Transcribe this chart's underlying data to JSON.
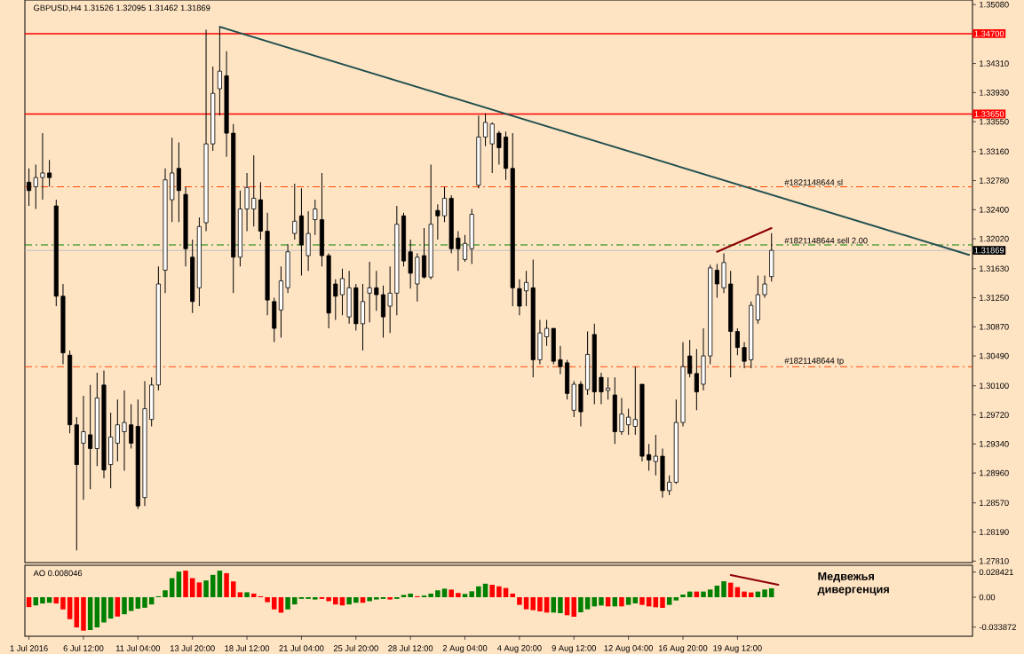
{
  "chart_data": [
    {
      "type": "candlestick",
      "title": "GBPUSD,H4  1.31526 1.32095 1.31462 1.31869",
      "categories": [
        null,
        null,
        null,
        null,
        null,
        null,
        null,
        null,
        null,
        null,
        null,
        null,
        null,
        null,
        null,
        null,
        null,
        null,
        null,
        null,
        null,
        null,
        null,
        null,
        null,
        null,
        null,
        null,
        null,
        null,
        null,
        null,
        null,
        null,
        null,
        null,
        null,
        null,
        null,
        null,
        null,
        null,
        null,
        null,
        null,
        null,
        null,
        null,
        null,
        null,
        null,
        null,
        null,
        null,
        null,
        null,
        null,
        null,
        null,
        null,
        null,
        null,
        null,
        null,
        null,
        null,
        null,
        null,
        null,
        null,
        null,
        null,
        null,
        null,
        null,
        null,
        null,
        null,
        null,
        null,
        null,
        null,
        null,
        null,
        null,
        null,
        null,
        null,
        null,
        null,
        null,
        null,
        null,
        null,
        null,
        null,
        null,
        null,
        null,
        null,
        null,
        null,
        null,
        null,
        null,
        null,
        null,
        null,
        null,
        null,
        null,
        null,
        null,
        null,
        null,
        null,
        null,
        null,
        null,
        null,
        null,
        null,
        null,
        null,
        null,
        null,
        null,
        null,
        null,
        null,
        null,
        null,
        null,
        null,
        null,
        null,
        null,
        null,
        null
      ],
      "tick_labels": "y",
      "ohlc": [
        [
          1.3276,
          1.3294,
          1.3245,
          1.3265
        ],
        [
          1.327,
          1.3299,
          1.3241,
          1.3282
        ],
        [
          1.3282,
          1.334,
          1.3253,
          1.3288
        ],
        [
          1.3288,
          1.3305,
          1.327,
          1.3282
        ],
        [
          1.3245,
          1.3253,
          1.3114,
          1.3127
        ],
        [
          1.3127,
          1.3143,
          1.3038,
          1.3053
        ],
        [
          1.305,
          1.3056,
          1.2948,
          1.2959
        ],
        [
          1.2959,
          1.2969,
          1.2795,
          1.2907
        ],
        [
          1.2935,
          1.2997,
          1.2861,
          1.295
        ],
        [
          1.2946,
          1.3011,
          1.2875,
          1.2928
        ],
        [
          1.2928,
          1.3027,
          1.2905,
          1.2994
        ],
        [
          1.3011,
          1.303,
          1.2889,
          1.29
        ],
        [
          1.2907,
          1.2975,
          1.2876,
          1.2943
        ],
        [
          1.2935,
          1.2992,
          1.2911,
          1.2959
        ],
        [
          1.295,
          1.3004,
          1.2899,
          1.2962
        ],
        [
          1.2959,
          1.2986,
          1.2928,
          1.2935
        ],
        [
          1.2957,
          1.2992,
          1.2849,
          1.2853
        ],
        [
          1.2864,
          1.3016,
          1.2853,
          1.298
        ],
        [
          1.2966,
          1.3021,
          1.2957,
          1.3011
        ],
        [
          1.3011,
          1.3166,
          1.3004,
          1.3143
        ],
        [
          1.3161,
          1.3294,
          1.3131,
          1.3279
        ],
        [
          1.3253,
          1.3334,
          1.3224,
          1.3288
        ],
        [
          1.3294,
          1.3328,
          1.3224,
          1.3265
        ],
        [
          1.326,
          1.327,
          1.3166,
          1.3189
        ],
        [
          1.3178,
          1.3201,
          1.3105,
          1.312
        ],
        [
          1.3138,
          1.323,
          1.3114,
          1.3218
        ],
        [
          1.3223,
          1.3475,
          1.3212,
          1.3326
        ],
        [
          1.3326,
          1.3427,
          1.3317,
          1.3392
        ],
        [
          1.3398,
          1.3479,
          1.3363,
          1.3421
        ],
        [
          1.3415,
          1.3447,
          1.3309,
          1.334
        ],
        [
          1.334,
          1.3352,
          1.3131,
          1.3178
        ],
        [
          1.3178,
          1.3265,
          1.3166,
          1.3241
        ],
        [
          1.3241,
          1.3288,
          1.3212,
          1.3269
        ],
        [
          1.3241,
          1.3311,
          1.3218,
          1.3255
        ],
        [
          1.3253,
          1.3276,
          1.3201,
          1.3212
        ],
        [
          1.3212,
          1.3236,
          1.3102,
          1.3122
        ],
        [
          1.312,
          1.3125,
          1.3067,
          1.3085
        ],
        [
          1.3109,
          1.3166,
          1.3073,
          1.3147
        ],
        [
          1.3138,
          1.3195,
          1.3131,
          1.3185
        ],
        [
          1.3209,
          1.3274,
          1.3201,
          1.3225
        ],
        [
          1.3232,
          1.3268,
          1.3154,
          1.3194
        ],
        [
          1.318,
          1.3238,
          1.316,
          1.3209
        ],
        [
          1.3227,
          1.3253,
          1.3207,
          1.3241
        ],
        [
          1.3227,
          1.3288,
          1.3166,
          1.318
        ],
        [
          1.318,
          1.3183,
          1.3085,
          1.3105
        ],
        [
          1.3143,
          1.3149,
          1.3096,
          1.3127
        ],
        [
          1.3129,
          1.3163,
          1.3102,
          1.315
        ],
        [
          1.31,
          1.316,
          1.3091,
          1.3138
        ],
        [
          1.3138,
          1.3143,
          1.3082,
          1.3091
        ],
        [
          1.3091,
          1.3143,
          1.3056,
          1.312
        ],
        [
          1.3131,
          1.3172,
          1.3093,
          1.3138
        ],
        [
          1.3138,
          1.316,
          1.3108,
          1.3129
        ],
        [
          1.3129,
          1.3141,
          1.3073,
          1.31
        ],
        [
          1.3114,
          1.3166,
          1.3079,
          1.3131
        ],
        [
          1.3131,
          1.3245,
          1.3102,
          1.3221
        ],
        [
          1.3232,
          1.3236,
          1.3166,
          1.3173
        ],
        [
          1.3185,
          1.3201,
          1.3137,
          1.3157
        ],
        [
          1.3143,
          1.3183,
          1.312,
          1.3178
        ],
        [
          1.318,
          1.3216,
          1.315,
          1.3152
        ],
        [
          1.3152,
          1.3299,
          1.3149,
          1.3221
        ],
        [
          1.3239,
          1.3247,
          1.3201,
          1.3232
        ],
        [
          1.3232,
          1.327,
          1.3224,
          1.3255
        ],
        [
          1.3255,
          1.3259,
          1.3183,
          1.3189
        ],
        [
          1.3203,
          1.3212,
          1.316,
          1.3189
        ],
        [
          1.3175,
          1.3207,
          1.3172,
          1.3196
        ],
        [
          1.3189,
          1.3241,
          1.3169,
          1.3234
        ],
        [
          1.3272,
          1.3363,
          1.3268,
          1.3335
        ],
        [
          1.3335,
          1.3366,
          1.3323,
          1.3354
        ],
        [
          1.3326,
          1.3354,
          1.3288,
          1.3352
        ],
        [
          1.334,
          1.3343,
          1.3299,
          1.3321
        ],
        [
          1.3335,
          1.3342,
          1.3279,
          1.3294
        ],
        [
          1.3294,
          1.334,
          1.3114,
          1.3138
        ],
        [
          1.3137,
          1.3149,
          1.3102,
          1.3114
        ],
        [
          1.3134,
          1.316,
          1.3114,
          1.3145
        ],
        [
          1.3138,
          1.3175,
          1.3021,
          1.3044
        ],
        [
          1.3044,
          1.3096,
          1.3038,
          1.3079
        ],
        [
          1.3074,
          1.3096,
          1.3062,
          1.3085
        ],
        [
          1.3085,
          1.3085,
          1.3038,
          1.3042
        ],
        [
          1.3044,
          1.3062,
          1.3025,
          1.3035
        ],
        [
          1.304,
          1.3044,
          1.2992,
          1.3
        ],
        [
          1.2978,
          1.3016,
          1.2969,
          1.3012
        ],
        [
          1.3012,
          1.3016,
          1.2957,
          1.2976
        ],
        [
          1.3005,
          1.3081,
          1.2998,
          1.3051
        ],
        [
          1.3077,
          1.3091,
          1.2986,
          1.3002
        ],
        [
          1.3021,
          1.3027,
          1.2986,
          1.3002
        ],
        [
          1.3004,
          1.3021,
          1.2992,
          1.3007
        ],
        [
          1.2998,
          1.3021,
          1.2934,
          1.295
        ],
        [
          1.295,
          1.2994,
          1.2946,
          1.2973
        ],
        [
          1.2959,
          1.298,
          1.2946,
          1.2969
        ],
        [
          1.2957,
          1.3035,
          1.2946,
          1.2966
        ],
        [
          1.3012,
          1.3012,
          1.2911,
          1.2918
        ],
        [
          1.292,
          1.2934,
          1.2899,
          1.2913
        ],
        [
          1.2911,
          1.2946,
          1.2893,
          1.2918
        ],
        [
          1.2918,
          1.2928,
          1.2864,
          1.2873
        ],
        [
          1.2873,
          1.2893,
          1.2867,
          1.2884
        ],
        [
          1.2884,
          1.2992,
          1.2882,
          1.2962
        ],
        [
          1.2962,
          1.3067,
          1.2957,
          1.3035
        ],
        [
          1.3049,
          1.307,
          1.3021,
          1.3026
        ],
        [
          1.3026,
          1.3058,
          1.2978,
          1.3002
        ],
        [
          1.3012,
          1.3085,
          1.3004,
          1.3049
        ],
        [
          1.3049,
          1.3168,
          1.3038,
          1.3164
        ],
        [
          1.3161,
          1.3169,
          1.3125,
          1.3143
        ],
        [
          1.3138,
          1.3183,
          1.3131,
          1.3171
        ],
        [
          1.3143,
          1.316,
          1.3021,
          1.3081
        ],
        [
          1.3081,
          1.3085,
          1.305,
          1.306
        ],
        [
          1.306,
          1.3067,
          1.3033,
          1.3042
        ],
        [
          1.3044,
          1.312,
          1.3033,
          1.3115
        ],
        [
          1.3096,
          1.3154,
          1.3091,
          1.3129
        ],
        [
          1.3129,
          1.3154,
          1.3125,
          1.3143
        ],
        [
          1.31526,
          1.32095,
          1.31462,
          1.31869
        ],
        null,
        null,
        null,
        null,
        null,
        null,
        null,
        null,
        null,
        null,
        null,
        null,
        null,
        null,
        null,
        null,
        null,
        null,
        null,
        null,
        null,
        null,
        null,
        null,
        null,
        null,
        null,
        null,
        null
      ],
      "ylim": [
        1.2779,
        1.3514
      ],
      "yticks": [
        {
          "value": 1.3508,
          "label": "1.35080"
        },
        {
          "value": 1.3431,
          "label": "1.34310"
        },
        {
          "value": 1.3393,
          "label": "1.33930"
        },
        {
          "value": 1.3355,
          "label": "1.33550"
        },
        {
          "value": 1.3316,
          "label": "1.33160"
        },
        {
          "value": 1.3278,
          "label": "1.32780"
        },
        {
          "value": 1.324,
          "label": "1.32400"
        },
        {
          "value": 1.3202,
          "label": "1.32020"
        },
        {
          "value": 1.3163,
          "label": "1.31630"
        },
        {
          "value": 1.3125,
          "label": "1.31250"
        },
        {
          "value": 1.3087,
          "label": "1.30870"
        },
        {
          "value": 1.3049,
          "label": "1.30490"
        },
        {
          "value": 1.301,
          "label": "1.30100"
        },
        {
          "value": 1.2972,
          "label": "1.29720"
        },
        {
          "value": 1.2934,
          "label": "1.29340"
        },
        {
          "value": 1.2896,
          "label": "1.28960"
        },
        {
          "value": 1.2857,
          "label": "1.28570"
        },
        {
          "value": 1.2819,
          "label": "1.28190"
        },
        {
          "value": 1.2781,
          "label": "1.27810"
        }
      ],
      "ref_lines": [
        {
          "axis": "y",
          "value": 1.31869,
          "label": "1.31869",
          "color": "#c0c0c0",
          "line_style": "solid"
        },
        {
          "axis": "y",
          "value": 1.347,
          "label": "1.34700",
          "color": "#ff0000",
          "line_style": "solid"
        },
        {
          "axis": "y",
          "value": 1.3365,
          "label": "1.33650",
          "color": "#ff0000",
          "line_style": "solid"
        },
        {
          "axis": "y",
          "value": 1.327,
          "label": "#1821148644 sl",
          "color": "#ff4500",
          "line_style": "dashed"
        },
        {
          "axis": "y",
          "value": 1.3194,
          "label": "#1821148644 sell 2.00",
          "color": "#008000",
          "line_style": "dashed"
        },
        {
          "axis": "y",
          "value": 1.3035,
          "label": "#1821148644 tp",
          "color": "#ff4500",
          "line_style": "dashed"
        }
      ],
      "series": [
        {
          "type": "line",
          "color": "#1f4f4f",
          "values": [
            null,
            null,
            null,
            null,
            null,
            null,
            null,
            null,
            null,
            null,
            null,
            null,
            null,
            null,
            null,
            null,
            null,
            null,
            null,
            null,
            null,
            null,
            null,
            null,
            null,
            null,
            null,
            null,
            1.3479,
            null,
            null,
            null,
            null,
            null,
            null,
            null,
            null,
            null,
            null,
            null,
            null,
            null,
            null,
            null,
            null,
            null,
            null,
            null,
            null,
            null,
            null,
            null,
            null,
            null,
            null,
            null,
            null,
            null,
            null,
            null,
            null,
            null,
            null,
            null,
            null,
            null,
            null,
            null,
            null,
            null,
            null,
            null,
            null,
            null,
            null,
            null,
            null,
            null,
            null,
            null,
            null,
            null,
            null,
            null,
            null,
            null,
            null,
            null,
            null,
            null,
            null,
            null,
            null,
            null,
            null,
            null,
            null,
            null,
            null,
            null,
            null,
            null,
            null,
            null,
            null,
            null,
            null,
            null,
            null,
            null,
            null,
            null,
            null,
            null,
            null,
            null,
            null,
            null,
            null,
            null,
            null,
            null,
            null,
            null,
            null,
            null,
            null,
            null,
            null,
            null,
            null,
            null,
            null,
            null,
            null,
            null,
            null,
            null,
            1.3181
          ]
        },
        {
          "type": "line",
          "color": "#8b0000",
          "values": [
            null,
            null,
            null,
            null,
            null,
            null,
            null,
            null,
            null,
            null,
            null,
            null,
            null,
            null,
            null,
            null,
            null,
            null,
            null,
            null,
            null,
            null,
            null,
            null,
            null,
            null,
            null,
            null,
            null,
            null,
            null,
            null,
            null,
            null,
            null,
            null,
            null,
            null,
            null,
            null,
            null,
            null,
            null,
            null,
            null,
            null,
            null,
            null,
            null,
            null,
            null,
            null,
            null,
            null,
            null,
            null,
            null,
            null,
            null,
            null,
            null,
            null,
            null,
            null,
            null,
            null,
            null,
            null,
            null,
            null,
            null,
            null,
            null,
            null,
            null,
            null,
            null,
            null,
            null,
            null,
            null,
            null,
            null,
            null,
            null,
            null,
            null,
            null,
            null,
            null,
            null,
            null,
            null,
            null,
            null,
            null,
            null,
            null,
            null,
            null,
            null,
            1.3185,
            null,
            null,
            null,
            null,
            null,
            null,
            null,
            1.3216,
            null,
            null,
            null,
            null,
            null,
            null,
            null,
            null,
            null,
            null,
            null,
            null,
            null,
            null,
            null,
            null,
            null,
            null,
            null,
            null,
            null,
            null,
            null,
            null,
            null,
            null,
            null,
            null,
            null
          ]
        }
      ]
    },
    {
      "type": "bar",
      "title": "AO 0.008046",
      "categories": [
        "1 Jul 2016",
        null,
        null,
        null,
        null,
        null,
        null,
        null,
        "6 Jul 12:00",
        null,
        null,
        null,
        null,
        null,
        null,
        null,
        "11 Jul 04:00",
        null,
        null,
        null,
        null,
        null,
        null,
        null,
        "13 Jul 20:00",
        null,
        null,
        null,
        null,
        null,
        null,
        null,
        "18 Jul 12:00",
        null,
        null,
        null,
        null,
        null,
        null,
        null,
        "21 Jul 04:00",
        null,
        null,
        null,
        null,
        null,
        null,
        null,
        "25 Jul 20:00",
        null,
        null,
        null,
        null,
        null,
        null,
        null,
        "28 Jul 12:00",
        null,
        null,
        null,
        null,
        null,
        null,
        null,
        "2 Aug 04:00",
        null,
        null,
        null,
        null,
        null,
        null,
        null,
        "4 Aug 20:00",
        null,
        null,
        null,
        null,
        null,
        null,
        null,
        "9 Aug 12:00",
        null,
        null,
        null,
        null,
        null,
        null,
        null,
        "12 Aug 04:00",
        null,
        null,
        null,
        null,
        null,
        null,
        null,
        "16 Aug 20:00",
        null,
        null,
        null,
        null,
        null,
        null,
        null,
        "19 Aug 12:00",
        null,
        null,
        null,
        null,
        null,
        null,
        null,
        null,
        null,
        null,
        null,
        null,
        null,
        null,
        null,
        null,
        null,
        null,
        null,
        null,
        null,
        null,
        null,
        null,
        null,
        null,
        null,
        null,
        null,
        null,
        null,
        null,
        null,
        null
      ],
      "values": [
        -0.0112,
        -0.0093,
        -0.0071,
        -0.0063,
        -0.0071,
        -0.0138,
        -0.0249,
        -0.0342,
        -0.0379,
        -0.0372,
        -0.0342,
        -0.0286,
        -0.0242,
        -0.0219,
        -0.0193,
        -0.0156,
        -0.013,
        -0.0119,
        -0.0082,
        0.0011,
        0.0078,
        0.0216,
        0.029,
        0.0301,
        0.0216,
        0.0167,
        0.019,
        0.0253,
        0.0301,
        0.0272,
        0.0179,
        0.0056,
        0.0056,
        0.0041,
        0.0011,
        -0.0056,
        -0.0138,
        -0.0175,
        -0.0138,
        -0.0082,
        -0.0019,
        -0.0019,
        -0.0026,
        -0.0019,
        -0.0045,
        -0.0082,
        -0.0093,
        -0.0082,
        -0.0063,
        -0.0063,
        -0.0045,
        -0.0026,
        -0.0019,
        -0.0026,
        -0.0019,
        0.0026,
        0.0041,
        0.0011,
        0.0019,
        0.0041,
        0.0078,
        0.0097,
        0.0086,
        0.0048,
        0.0037,
        0.0067,
        0.0123,
        0.0153,
        0.0141,
        0.0123,
        0.0104,
        0.0041,
        -0.0087,
        -0.0137,
        -0.0147,
        -0.0161,
        -0.0174,
        -0.0174,
        -0.0181,
        -0.0204,
        -0.0221,
        -0.0171,
        -0.0137,
        -0.0104,
        -0.0094,
        -0.0104,
        -0.0104,
        -0.0104,
        -0.0087,
        -0.007,
        -0.0087,
        -0.0104,
        -0.0114,
        -0.0121,
        -0.0087,
        -0.0037,
        0.003,
        0.0064,
        0.0064,
        0.0064,
        0.0087,
        0.0131,
        0.0181,
        0.0164,
        0.0114,
        0.0064,
        0.0054,
        0.0064,
        0.0087,
        0.0101,
        null,
        null,
        null,
        null,
        null,
        null,
        null,
        null,
        null,
        null,
        null,
        null,
        null,
        null,
        null,
        null,
        null,
        null,
        null,
        null,
        null,
        null,
        null,
        null,
        null,
        null,
        null,
        null,
        null
      ],
      "colors": [
        "#ff0000",
        "#008000",
        "#008000",
        "#008000",
        "#ff0000",
        "#ff0000",
        "#ff0000",
        "#ff0000",
        "#ff0000",
        "#008000",
        "#008000",
        "#008000",
        "#008000",
        "#ff0000",
        "#008000",
        "#008000",
        "#008000",
        "#008000",
        "#008000",
        "#008000",
        "#008000",
        "#008000",
        "#008000",
        "#ff0000",
        "#ff0000",
        "#ff0000",
        "#008000",
        "#008000",
        "#008000",
        "#ff0000",
        "#ff0000",
        "#ff0000",
        "#008000",
        "#ff0000",
        "#ff0000",
        "#ff0000",
        "#ff0000",
        "#ff0000",
        "#008000",
        "#008000",
        "#008000",
        "#008000",
        "#008000",
        "#ff0000",
        "#ff0000",
        "#ff0000",
        "#ff0000",
        "#008000",
        "#008000",
        "#ff0000",
        "#008000",
        "#008000",
        "#008000",
        "#ff0000",
        "#008000",
        "#008000",
        "#008000",
        "#ff0000",
        "#008000",
        "#008000",
        "#008000",
        "#008000",
        "#ff0000",
        "#ff0000",
        "#008000",
        "#008000",
        "#008000",
        "#008000",
        "#ff0000",
        "#ff0000",
        "#ff0000",
        "#ff0000",
        "#ff0000",
        "#ff0000",
        "#ff0000",
        "#ff0000",
        "#ff0000",
        "#008000",
        "#008000",
        "#ff0000",
        "#ff0000",
        "#008000",
        "#008000",
        "#008000",
        "#008000",
        "#ff0000",
        "#008000",
        "#ff0000",
        "#008000",
        "#008000",
        "#ff0000",
        "#ff0000",
        "#ff0000",
        "#ff0000",
        "#008000",
        "#008000",
        "#008000",
        "#008000",
        "#ff0000",
        "#008000",
        "#008000",
        "#008000",
        "#008000",
        "#ff0000",
        "#ff0000",
        "#ff0000",
        "#ff0000",
        "#008000",
        "#008000",
        "#008000",
        null,
        null,
        null,
        null,
        null,
        null,
        null,
        null,
        null,
        null,
        null,
        null,
        null,
        null,
        null,
        null,
        null,
        null,
        null,
        null,
        null,
        null,
        null,
        null,
        null,
        null,
        null,
        null,
        null
      ],
      "ylim": [
        -0.0442,
        0.0362
      ],
      "yticks": [
        {
          "value": 0.028421,
          "label": "0.028421"
        },
        {
          "value": 0,
          "label": "0.00"
        },
        {
          "value": -0.033872,
          "label": "-0.033872"
        }
      ],
      "annotations": [
        "Медвежья дивергенция"
      ],
      "series": [
        {
          "type": "line",
          "color": "#8b0000",
          "values": [
            null,
            null,
            null,
            null,
            null,
            null,
            null,
            null,
            null,
            null,
            null,
            null,
            null,
            null,
            null,
            null,
            null,
            null,
            null,
            null,
            null,
            null,
            null,
            null,
            null,
            null,
            null,
            null,
            null,
            null,
            null,
            null,
            null,
            null,
            null,
            null,
            null,
            null,
            null,
            null,
            null,
            null,
            null,
            null,
            null,
            null,
            null,
            null,
            null,
            null,
            null,
            null,
            null,
            null,
            null,
            null,
            null,
            null,
            null,
            null,
            null,
            null,
            null,
            null,
            null,
            null,
            null,
            null,
            null,
            null,
            null,
            null,
            null,
            null,
            null,
            null,
            null,
            null,
            null,
            null,
            null,
            null,
            null,
            null,
            null,
            null,
            null,
            null,
            null,
            null,
            null,
            null,
            null,
            null,
            null,
            null,
            null,
            null,
            null,
            null,
            null,
            null,
            null,
            0.0251,
            null,
            null,
            null,
            null,
            null,
            null,
            0.0141,
            null,
            null,
            null,
            null,
            null,
            null,
            null,
            null,
            null,
            null,
            null,
            null,
            null,
            null,
            null,
            null,
            null,
            null,
            null,
            null,
            null,
            null,
            null,
            null,
            null,
            null,
            null,
            null
          ]
        }
      ]
    }
  ]
}
